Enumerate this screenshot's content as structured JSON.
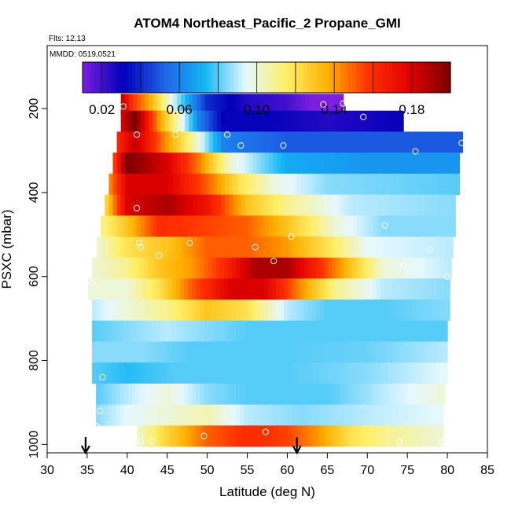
{
  "chart_data": {
    "type": "heatmap",
    "title": "ATOM4 Northeast_Pacific_2 Propane_GMI",
    "flights_label": "Flts: 12,13",
    "dates_label": "MMDD: 0519,0521",
    "xlabel": "Latitude (deg N)",
    "ylabel": "PSXC (mbar)",
    "xlim": [
      30,
      85
    ],
    "ylim": [
      1020,
      50
    ],
    "y_reversed": true,
    "x_ticks": [
      30,
      35,
      40,
      45,
      50,
      55,
      60,
      65,
      70,
      75,
      80,
      85
    ],
    "y_ticks": [
      200,
      400,
      600,
      800,
      1000
    ],
    "grid": false,
    "colorbar": {
      "placement": "top-inside",
      "range": [
        0.01,
        0.2
      ],
      "ticks": [
        "0.02",
        "0.06",
        "0.10",
        "0.14",
        "0.18"
      ],
      "tick_values": [
        0.02,
        0.06,
        0.1,
        0.14,
        0.18
      ],
      "colors": [
        "#7b1fe0",
        "#0000b8",
        "#1e63e6",
        "#14b7f5",
        "#e6f8ff",
        "#ffef66",
        "#ffb000",
        "#ff3000",
        "#e00000",
        "#7a0000"
      ]
    },
    "rows": [
      {
        "p": 190,
        "lat_start": 39.2,
        "lat_end": 67.0,
        "knots": [
          [
            39.2,
            0.19
          ],
          [
            40.5,
            0.16
          ],
          [
            43,
            0.135
          ],
          [
            46,
            0.09
          ],
          [
            50,
            0.04
          ],
          [
            55,
            0.025
          ],
          [
            60,
            0.02
          ],
          [
            63,
            0.01
          ],
          [
            67,
            0.005
          ]
        ]
      },
      {
        "p": 230,
        "lat_start": 39.2,
        "lat_end": 74.5,
        "knots": [
          [
            39.2,
            0.18
          ],
          [
            41,
            0.2
          ],
          [
            44,
            0.14
          ],
          [
            46,
            0.11
          ],
          [
            49,
            0.06
          ],
          [
            52,
            0.03
          ],
          [
            58,
            0.03
          ],
          [
            65,
            0.025
          ],
          [
            74.5,
            0.03
          ]
        ]
      },
      {
        "p": 280,
        "lat_start": 38.7,
        "lat_end": 81.9,
        "knots": [
          [
            38.7,
            0.16
          ],
          [
            41,
            0.185
          ],
          [
            45,
            0.14
          ],
          [
            48,
            0.11
          ],
          [
            52,
            0.06
          ],
          [
            60,
            0.05
          ],
          [
            70,
            0.05
          ],
          [
            81.9,
            0.05
          ]
        ]
      },
      {
        "p": 330,
        "lat_start": 38.2,
        "lat_end": 81.5,
        "knots": [
          [
            38.2,
            0.15
          ],
          [
            40,
            0.2
          ],
          [
            45,
            0.18
          ],
          [
            49,
            0.145
          ],
          [
            53,
            0.1
          ],
          [
            60,
            0.07
          ],
          [
            70,
            0.065
          ],
          [
            81.5,
            0.065
          ]
        ]
      },
      {
        "p": 380,
        "lat_start": 37.7,
        "lat_end": 81.5,
        "knots": [
          [
            37.7,
            0.14
          ],
          [
            40,
            0.18
          ],
          [
            45,
            0.18
          ],
          [
            50,
            0.15
          ],
          [
            54,
            0.12
          ],
          [
            58,
            0.1
          ],
          [
            65,
            0.085
          ],
          [
            81.5,
            0.08
          ]
        ]
      },
      {
        "p": 430,
        "lat_start": 37.2,
        "lat_end": 81.0,
        "knots": [
          [
            37.2,
            0.12
          ],
          [
            40,
            0.18
          ],
          [
            45,
            0.19
          ],
          [
            50,
            0.17
          ],
          [
            55,
            0.13
          ],
          [
            60,
            0.11
          ],
          [
            68,
            0.09
          ],
          [
            81,
            0.085
          ]
        ]
      },
      {
        "p": 480,
        "lat_start": 36.7,
        "lat_end": 81.0,
        "knots": [
          [
            36.7,
            0.11
          ],
          [
            40,
            0.13
          ],
          [
            44,
            0.16
          ],
          [
            50,
            0.155
          ],
          [
            55,
            0.15
          ],
          [
            60,
            0.13
          ],
          [
            66,
            0.1
          ],
          [
            72,
            0.085
          ],
          [
            81,
            0.085
          ]
        ]
      },
      {
        "p": 530,
        "lat_start": 36.2,
        "lat_end": 80.7,
        "knots": [
          [
            36.2,
            0.1
          ],
          [
            40,
            0.12
          ],
          [
            45,
            0.13
          ],
          [
            50,
            0.15
          ],
          [
            55,
            0.15
          ],
          [
            60,
            0.14
          ],
          [
            65,
            0.12
          ],
          [
            70,
            0.095
          ],
          [
            80.7,
            0.09
          ]
        ]
      },
      {
        "p": 580,
        "lat_start": 35.6,
        "lat_end": 80.5,
        "knots": [
          [
            35.6,
            0.1
          ],
          [
            40,
            0.11
          ],
          [
            44,
            0.13
          ],
          [
            48,
            0.14
          ],
          [
            52,
            0.16
          ],
          [
            56,
            0.19
          ],
          [
            60,
            0.19
          ],
          [
            64,
            0.16
          ],
          [
            68,
            0.13
          ],
          [
            72,
            0.1
          ],
          [
            80.5,
            0.09
          ]
        ]
      },
      {
        "p": 630,
        "lat_start": 35.1,
        "lat_end": 80.3,
        "knots": [
          [
            35.1,
            0.1
          ],
          [
            40,
            0.1
          ],
          [
            44,
            0.12
          ],
          [
            48,
            0.15
          ],
          [
            53,
            0.18
          ],
          [
            57,
            0.18
          ],
          [
            62,
            0.14
          ],
          [
            66,
            0.11
          ],
          [
            72,
            0.09
          ],
          [
            80.3,
            0.085
          ]
        ]
      },
      {
        "p": 680,
        "lat_start": 35.6,
        "lat_end": 80.3,
        "knots": [
          [
            35.6,
            0.09
          ],
          [
            40,
            0.1
          ],
          [
            45,
            0.11
          ],
          [
            50,
            0.13
          ],
          [
            55,
            0.12
          ],
          [
            60,
            0.09
          ],
          [
            65,
            0.08
          ],
          [
            72,
            0.08
          ],
          [
            80.3,
            0.085
          ]
        ]
      },
      {
        "p": 730,
        "lat_start": 35.6,
        "lat_end": 80.0,
        "knots": [
          [
            35.6,
            0.08
          ],
          [
            40,
            0.085
          ],
          [
            45,
            0.09
          ],
          [
            50,
            0.085
          ],
          [
            55,
            0.08
          ],
          [
            65,
            0.08
          ],
          [
            80,
            0.08
          ]
        ]
      },
      {
        "p": 780,
        "lat_start": 35.6,
        "lat_end": 80.0,
        "knots": [
          [
            35.6,
            0.085
          ],
          [
            42,
            0.085
          ],
          [
            48,
            0.08
          ],
          [
            52,
            0.08
          ],
          [
            60,
            0.08
          ],
          [
            70,
            0.082
          ],
          [
            80,
            0.09
          ]
        ]
      },
      {
        "p": 830,
        "lat_start": 35.6,
        "lat_end": 80.0,
        "knots": [
          [
            35.6,
            0.08
          ],
          [
            40,
            0.075
          ],
          [
            46,
            0.08
          ],
          [
            50,
            0.08
          ],
          [
            60,
            0.08
          ],
          [
            70,
            0.085
          ],
          [
            80,
            0.095
          ]
        ]
      },
      {
        "p": 880,
        "lat_start": 36.1,
        "lat_end": 79.7,
        "knots": [
          [
            36.1,
            0.08
          ],
          [
            40,
            0.09
          ],
          [
            45,
            0.1
          ],
          [
            50,
            0.085
          ],
          [
            55,
            0.08
          ],
          [
            65,
            0.08
          ],
          [
            72,
            0.09
          ],
          [
            79.7,
            0.1
          ]
        ]
      },
      {
        "p": 930,
        "lat_start": 36.1,
        "lat_end": 79.5,
        "knots": [
          [
            36.1,
            0.085
          ],
          [
            40,
            0.095
          ],
          [
            45,
            0.1
          ],
          [
            50,
            0.105
          ],
          [
            55,
            0.09
          ],
          [
            62,
            0.085
          ],
          [
            70,
            0.09
          ],
          [
            79.5,
            0.095
          ]
        ]
      },
      {
        "p": 980,
        "lat_start": 41.2,
        "lat_end": 79.5,
        "knots": [
          [
            41.2,
            0.1
          ],
          [
            45,
            0.125
          ],
          [
            50,
            0.15
          ],
          [
            55,
            0.16
          ],
          [
            60,
            0.155
          ],
          [
            64,
            0.14
          ],
          [
            68,
            0.12
          ],
          [
            72,
            0.11
          ],
          [
            79.5,
            0.1
          ]
        ]
      }
    ],
    "points": [
      [
        39.5,
        195
      ],
      [
        41.2,
        262
      ],
      [
        46,
        262
      ],
      [
        52.5,
        262
      ],
      [
        54.2,
        288
      ],
      [
        59.5,
        288
      ],
      [
        64.5,
        190
      ],
      [
        67.0,
        188
      ],
      [
        69.5,
        220
      ],
      [
        76.0,
        302
      ],
      [
        81.8,
        282
      ],
      [
        41.2,
        437
      ],
      [
        41.5,
        520
      ],
      [
        41.7,
        530
      ],
      [
        44,
        550
      ],
      [
        47.8,
        520
      ],
      [
        60.5,
        505
      ],
      [
        56,
        530
      ],
      [
        58.3,
        563
      ],
      [
        72.2,
        478
      ],
      [
        77.8,
        537
      ],
      [
        74.5,
        575
      ],
      [
        80.0,
        600
      ],
      [
        35.6,
        615
      ],
      [
        36.9,
        840
      ],
      [
        36.6,
        920
      ],
      [
        36.2,
        957
      ],
      [
        41.7,
        993
      ],
      [
        43.2,
        993
      ],
      [
        49.6,
        980
      ],
      [
        57.3,
        970
      ],
      [
        74.0,
        995
      ],
      [
        79.3,
        995
      ]
    ],
    "arrows_lat": [
      34.8,
      61.2
    ]
  }
}
